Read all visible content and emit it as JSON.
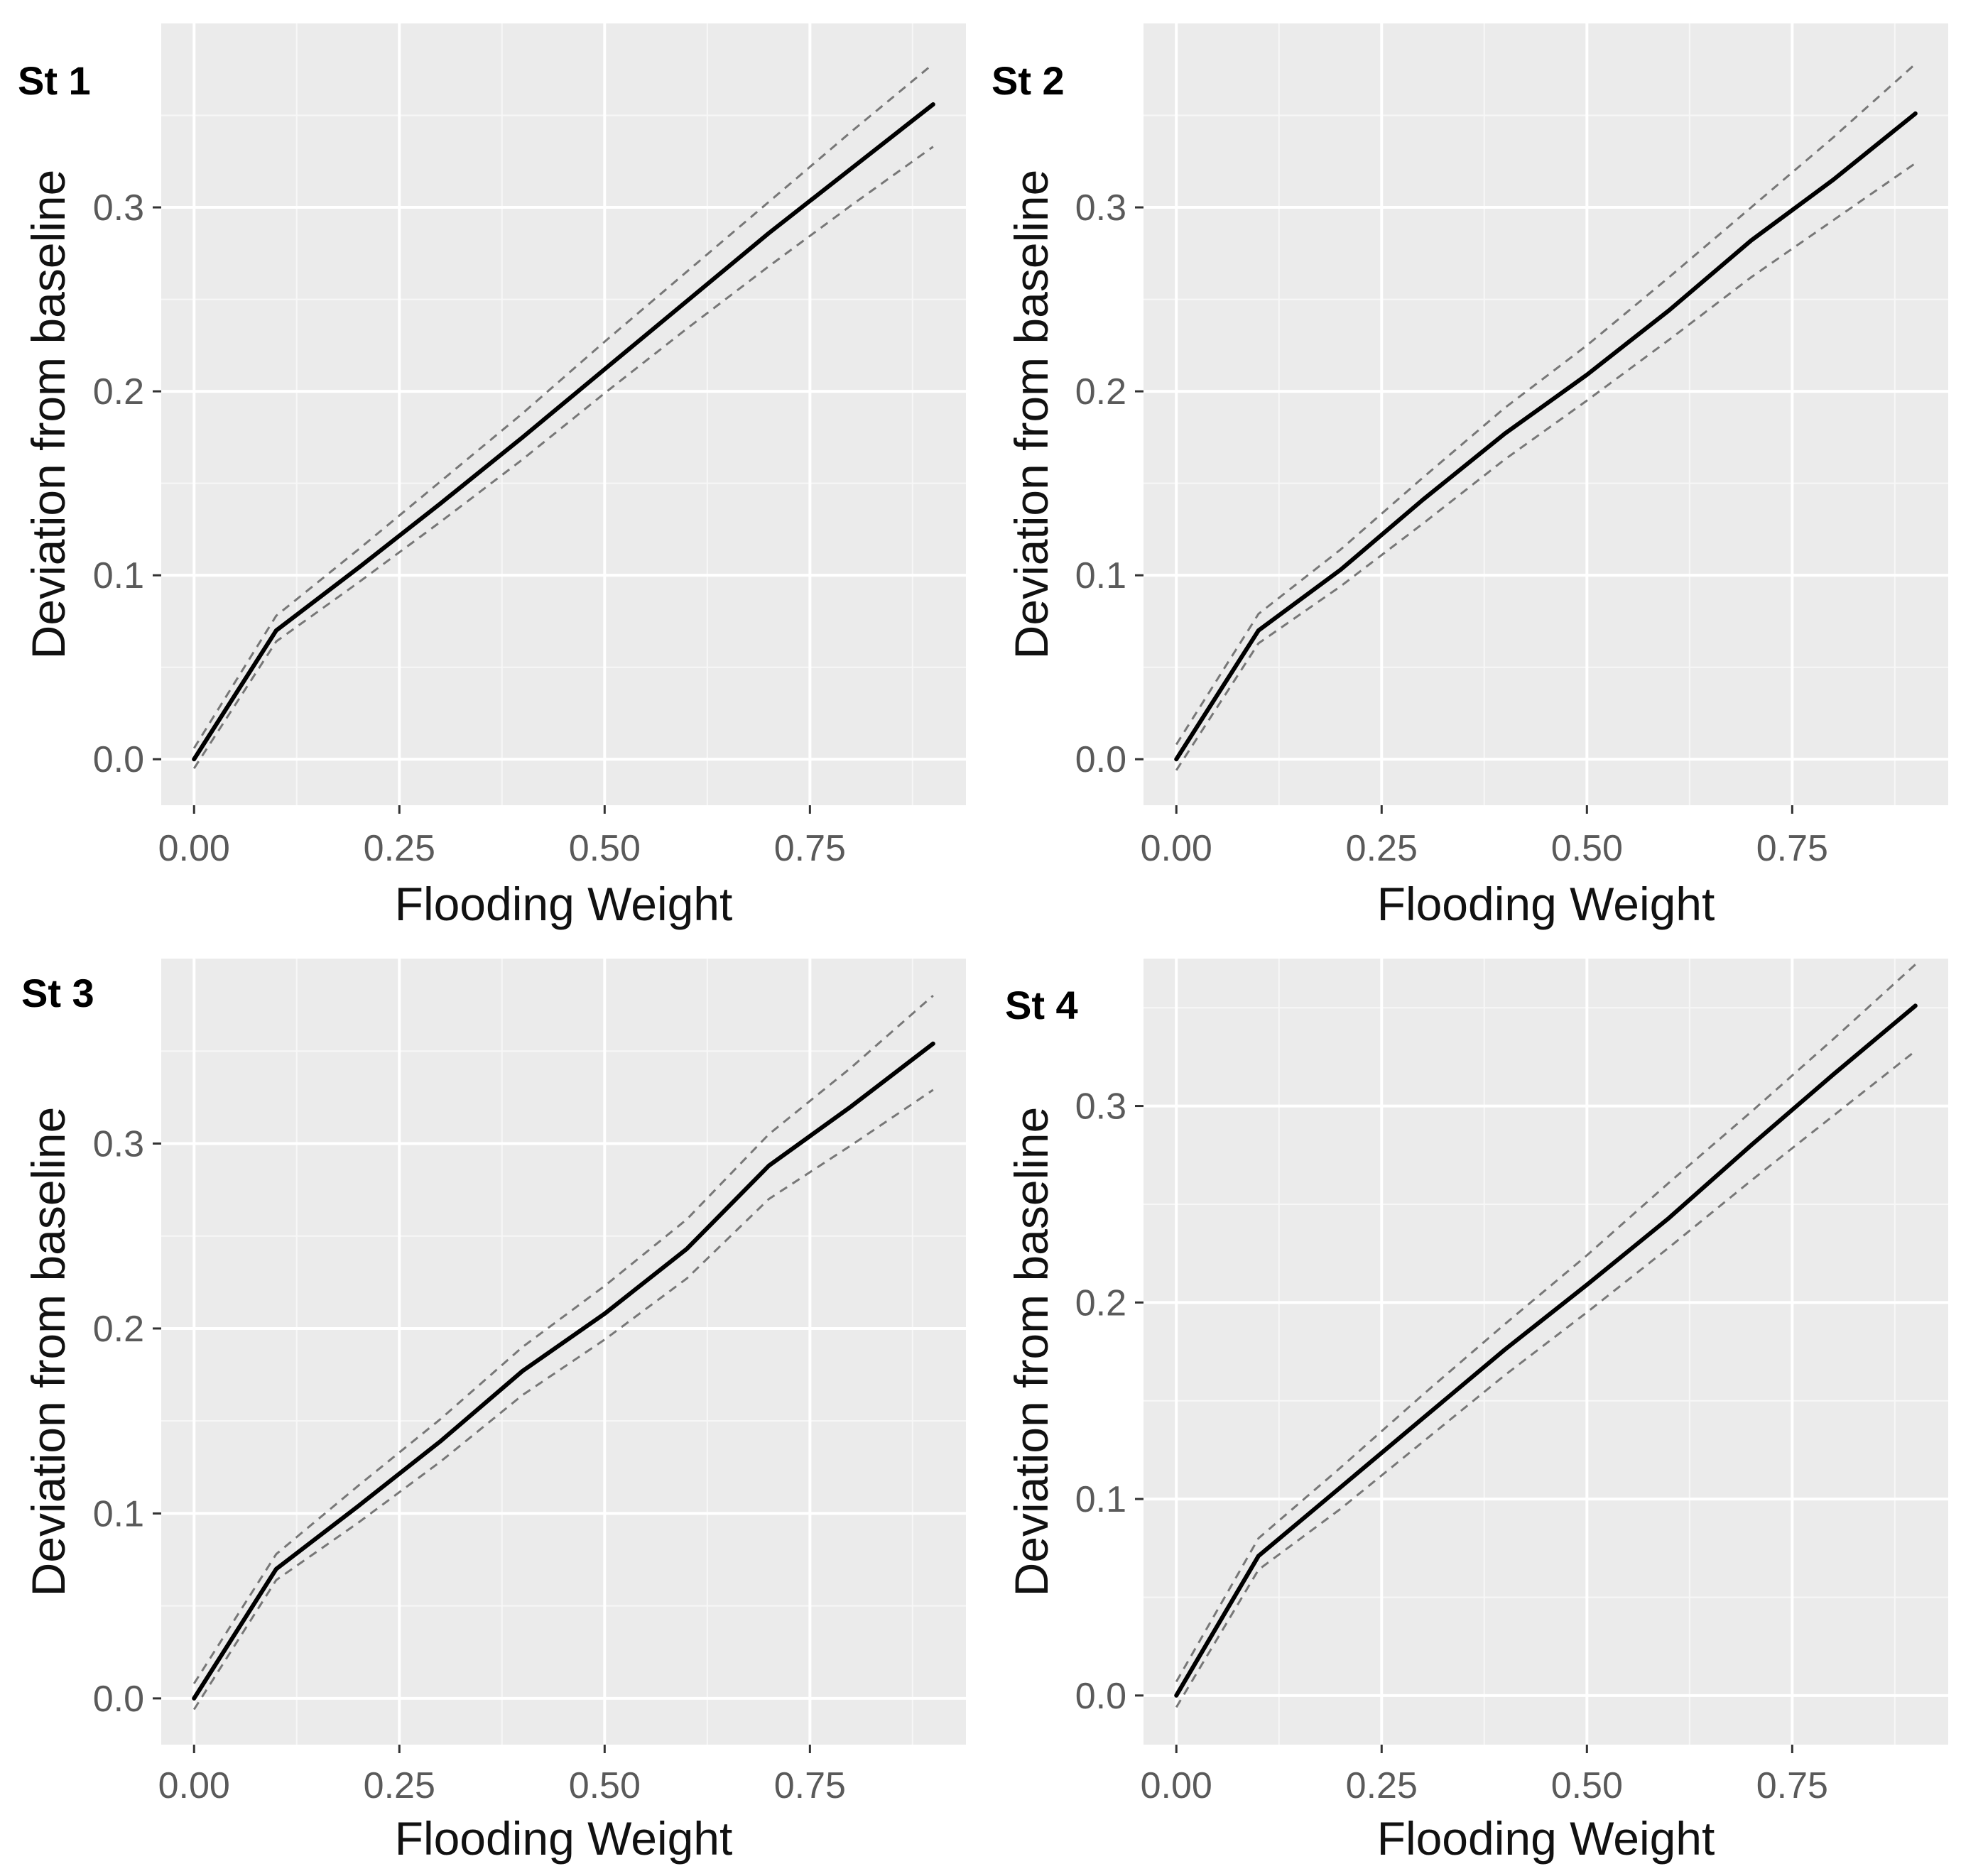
{
  "chart_data": [
    {
      "type": "line",
      "tag": "St 1",
      "xlabel": "Flooding Weight",
      "ylabel": "Deviation from baseline",
      "xlim": [
        -0.04,
        0.94
      ],
      "ylim": [
        -0.025,
        0.4
      ],
      "xticks": [
        0.0,
        0.25,
        0.5,
        0.75
      ],
      "xtick_labels": [
        "0.00",
        "0.25",
        "0.50",
        "0.75"
      ],
      "yticks": [
        0.0,
        0.1,
        0.2,
        0.3
      ],
      "ytick_labels": [
        "0.0",
        "0.1",
        "0.2",
        "0.3"
      ],
      "grid": true,
      "x": [
        0.0,
        0.1,
        0.2,
        0.3,
        0.4,
        0.5,
        0.6,
        0.7,
        0.8,
        0.9
      ],
      "series": [
        {
          "role": "estimate",
          "style": "solid",
          "color": "#000000",
          "values": [
            0.0,
            0.07,
            0.104,
            0.139,
            0.175,
            0.212,
            0.249,
            0.286,
            0.321,
            0.356
          ]
        },
        {
          "role": "upper",
          "style": "dashed",
          "color": "#777777",
          "values": [
            0.006,
            0.078,
            0.114,
            0.151,
            0.188,
            0.227,
            0.265,
            0.303,
            0.341,
            0.378
          ]
        },
        {
          "role": "lower",
          "style": "dashed",
          "color": "#777777",
          "values": [
            -0.005,
            0.064,
            0.096,
            0.129,
            0.163,
            0.199,
            0.234,
            0.268,
            0.301,
            0.333
          ]
        }
      ]
    },
    {
      "type": "line",
      "tag": "St 2",
      "xlabel": "Flooding Weight",
      "ylabel": "Deviation from baseline",
      "xlim": [
        -0.04,
        0.94
      ],
      "ylim": [
        -0.025,
        0.4
      ],
      "xticks": [
        0.0,
        0.25,
        0.5,
        0.75
      ],
      "xtick_labels": [
        "0.00",
        "0.25",
        "0.50",
        "0.75"
      ],
      "yticks": [
        0.0,
        0.1,
        0.2,
        0.3
      ],
      "ytick_labels": [
        "0.0",
        "0.1",
        "0.2",
        "0.3"
      ],
      "grid": true,
      "x": [
        0.0,
        0.1,
        0.2,
        0.3,
        0.4,
        0.5,
        0.6,
        0.7,
        0.8,
        0.9
      ],
      "series": [
        {
          "role": "estimate",
          "style": "solid",
          "color": "#000000",
          "values": [
            0.0,
            0.07,
            0.103,
            0.141,
            0.177,
            0.209,
            0.244,
            0.282,
            0.315,
            0.351
          ]
        },
        {
          "role": "upper",
          "style": "dashed",
          "color": "#777777",
          "values": [
            0.008,
            0.079,
            0.114,
            0.153,
            0.191,
            0.225,
            0.262,
            0.3,
            0.338,
            0.378
          ]
        },
        {
          "role": "lower",
          "style": "dashed",
          "color": "#777777",
          "values": [
            -0.006,
            0.063,
            0.094,
            0.128,
            0.163,
            0.195,
            0.228,
            0.262,
            0.293,
            0.324
          ]
        }
      ]
    },
    {
      "type": "line",
      "tag": "St 3",
      "xlabel": "Flooding Weight",
      "ylabel": "Deviation from baseline",
      "xlim": [
        -0.04,
        0.94
      ],
      "ylim": [
        -0.025,
        0.4
      ],
      "xticks": [
        0.0,
        0.25,
        0.5,
        0.75
      ],
      "xtick_labels": [
        "0.00",
        "0.25",
        "0.50",
        "0.75"
      ],
      "yticks": [
        0.0,
        0.1,
        0.2,
        0.3
      ],
      "ytick_labels": [
        "0.0",
        "0.1",
        "0.2",
        "0.3"
      ],
      "grid": true,
      "x": [
        0.0,
        0.1,
        0.2,
        0.3,
        0.4,
        0.5,
        0.6,
        0.7,
        0.8,
        0.9
      ],
      "series": [
        {
          "role": "estimate",
          "style": "solid",
          "color": "#000000",
          "values": [
            0.0,
            0.07,
            0.104,
            0.139,
            0.177,
            0.208,
            0.243,
            0.288,
            0.32,
            0.354
          ]
        },
        {
          "role": "upper",
          "style": "dashed",
          "color": "#777777",
          "values": [
            0.008,
            0.078,
            0.115,
            0.151,
            0.19,
            0.223,
            0.259,
            0.305,
            0.341,
            0.38
          ]
        },
        {
          "role": "lower",
          "style": "dashed",
          "color": "#777777",
          "values": [
            -0.006,
            0.064,
            0.095,
            0.128,
            0.164,
            0.194,
            0.227,
            0.27,
            0.299,
            0.329
          ]
        }
      ]
    },
    {
      "type": "line",
      "tag": "St 4",
      "xlabel": "Flooding Weight",
      "ylabel": "Deviation from baseline",
      "xlim": [
        -0.04,
        0.94
      ],
      "ylim": [
        -0.025,
        0.375
      ],
      "xticks": [
        0.0,
        0.25,
        0.5,
        0.75
      ],
      "xtick_labels": [
        "0.00",
        "0.25",
        "0.50",
        "0.75"
      ],
      "yticks": [
        0.0,
        0.1,
        0.2,
        0.3
      ],
      "ytick_labels": [
        "0.0",
        "0.1",
        "0.2",
        "0.3"
      ],
      "grid": true,
      "x": [
        0.0,
        0.1,
        0.2,
        0.3,
        0.4,
        0.5,
        0.6,
        0.7,
        0.8,
        0.9
      ],
      "series": [
        {
          "role": "estimate",
          "style": "solid",
          "color": "#000000",
          "values": [
            0.0,
            0.071,
            0.106,
            0.141,
            0.176,
            0.209,
            0.243,
            0.28,
            0.316,
            0.351
          ]
        },
        {
          "role": "upper",
          "style": "dashed",
          "color": "#777777",
          "values": [
            0.007,
            0.08,
            0.116,
            0.153,
            0.189,
            0.224,
            0.261,
            0.297,
            0.334,
            0.372
          ]
        },
        {
          "role": "lower",
          "style": "dashed",
          "color": "#777777",
          "values": [
            -0.006,
            0.064,
            0.095,
            0.129,
            0.163,
            0.195,
            0.228,
            0.262,
            0.295,
            0.328
          ]
        }
      ]
    }
  ]
}
